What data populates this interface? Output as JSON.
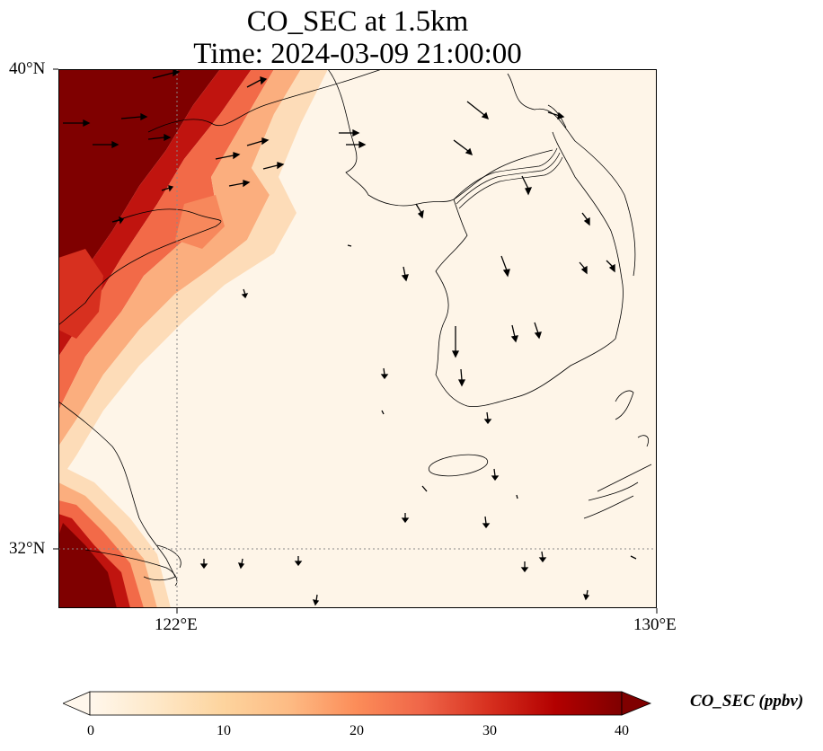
{
  "title": {
    "line1": "CO_SEC at 1.5km",
    "line2": "Time: 2024-03-09 21:00:00"
  },
  "axes": {
    "lat_labels": [
      "40°N",
      "32°N"
    ],
    "lon_labels": [
      "122°E",
      "130°E"
    ],
    "lat_range": [
      31,
      40
    ],
    "lon_range": [
      120,
      130
    ],
    "gridlines": {
      "lat": 32,
      "lon": 122,
      "style": "dotted"
    }
  },
  "colorbar": {
    "label": "CO_SEC (ppbv)",
    "ticks": [
      "0",
      "10",
      "20",
      "30",
      "40"
    ],
    "min": 0,
    "max": 40,
    "extend": "both",
    "colormap": [
      "#fff7ec",
      "#fee8c8",
      "#fdd49e",
      "#fdbb84",
      "#fc8d59",
      "#ef6548",
      "#d7301f",
      "#b30000",
      "#7f0000"
    ]
  },
  "chart_data": {
    "type": "heatmap",
    "variable": "CO_SEC",
    "units": "ppbv",
    "high_regions": [
      "northwest band (Liaodong/Shandong coast)",
      "southwest corner (Yangtze estuary)"
    ]
  },
  "colors": {
    "background": "#fff5e8",
    "coast": "#000000",
    "grid": "#888888"
  }
}
